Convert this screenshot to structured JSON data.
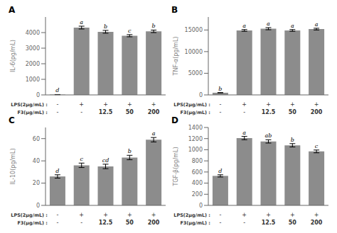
{
  "chart_data": [
    {
      "type": "bar",
      "title": "A",
      "ylabel": "IL-6(pg/mL)",
      "categories": [
        null,
        null,
        null,
        null,
        null
      ],
      "values": [
        20,
        4320,
        4050,
        3800,
        4080
      ],
      "errors": [
        5,
        90,
        90,
        70,
        80
      ],
      "color": "#8c8c8c",
      "ylim": [
        0,
        5000
      ],
      "yticks": [
        0,
        1000,
        2000,
        3000,
        4000
      ],
      "annotations": {
        "bar_labels": [
          "d",
          "a",
          "b",
          "c",
          "b"
        ],
        "rows": [
          {
            "header": "LPS(2μg/mL) :",
            "labels": [
              "-",
              "+",
              "+",
              "+",
              "+"
            ]
          },
          {
            "header": "F3(μg/mL) :",
            "labels": [
              "-",
              "-",
              "12.5",
              "50",
              "200"
            ]
          }
        ]
      }
    },
    {
      "type": "bar",
      "title": "B",
      "ylabel": "TNF-α(pg/mL)",
      "categories": [
        null,
        null,
        null,
        null,
        null
      ],
      "values": [
        500,
        14900,
        15300,
        14900,
        15200
      ],
      "errors": [
        30,
        200,
        250,
        200,
        200
      ],
      "color": "#8c8c8c",
      "ylim": [
        0,
        18000
      ],
      "yticks": [
        0,
        5000,
        10000,
        15000
      ],
      "annotations": {
        "bar_labels": [
          "b",
          "a",
          "a",
          "a",
          "a"
        ],
        "rows": [
          {
            "header": "LPS(2μg/mL) :",
            "labels": [
              "-",
              "+",
              "+",
              "+",
              "+"
            ]
          },
          {
            "header": "F3(μg/mL) :",
            "labels": [
              "-",
              "-",
              "12.5",
              "50",
              "200"
            ]
          }
        ]
      }
    },
    {
      "type": "bar",
      "title": "C",
      "ylabel": "IL-10(pg/mL)",
      "categories": [
        null,
        null,
        null,
        null,
        null
      ],
      "values": [
        26,
        36,
        35,
        43,
        59
      ],
      "errors": [
        1.5,
        2,
        2,
        2,
        2
      ],
      "color": "#8c8c8c",
      "ylim": [
        0,
        70
      ],
      "yticks": [
        0,
        20,
        40,
        60
      ],
      "annotations": {
        "bar_labels": [
          "d",
          "c",
          "cd",
          "b",
          "a"
        ],
        "rows": [
          {
            "header": "LPS(2μg/mL) :",
            "labels": [
              "-",
              "+",
              "+",
              "+",
              "+"
            ]
          },
          {
            "header": "F3(μg/mL) :",
            "labels": [
              "-",
              "-",
              "12.5",
              "50",
              "200"
            ]
          }
        ]
      }
    },
    {
      "type": "bar",
      "title": "D",
      "ylabel": "TGF-β(pg/mL)",
      "categories": [
        null,
        null,
        null,
        null,
        null
      ],
      "values": [
        530,
        1210,
        1150,
        1080,
        970
      ],
      "errors": [
        20,
        30,
        30,
        30,
        25
      ],
      "color": "#8c8c8c",
      "ylim": [
        0,
        1400
      ],
      "yticks": [
        0,
        200,
        400,
        600,
        800,
        1000,
        1200,
        1400
      ],
      "annotations": {
        "bar_labels": [
          "d",
          "a",
          "ab",
          "b",
          "c"
        ],
        "rows": [
          {
            "header": "LPS(2μg/mL) :",
            "labels": [
              "-",
              "+",
              "+",
              "+",
              "+"
            ]
          },
          {
            "header": "F3(μg/mL) :",
            "labels": [
              "-",
              "-",
              "12.5",
              "50",
              "200"
            ]
          }
        ]
      }
    }
  ]
}
